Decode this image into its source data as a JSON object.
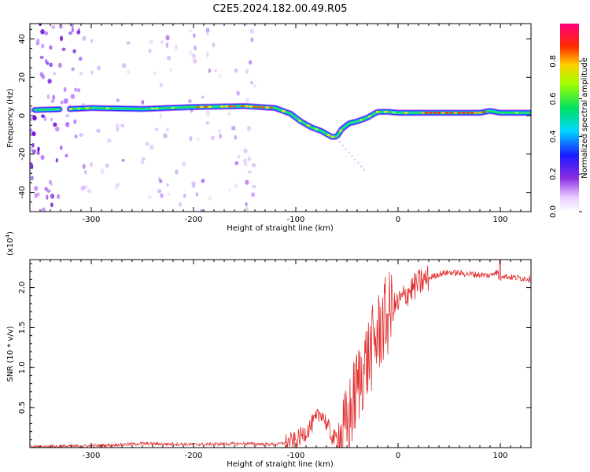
{
  "chart_data": [
    {
      "type": "heatmap",
      "title": "C2E5.2024.182.00.49.R05",
      "xlabel": "Height of straight line (km)",
      "ylabel": "Frequency (Hz)",
      "xlim": [
        -360,
        130
      ],
      "ylim": [
        -50,
        48
      ],
      "xticks": [
        -300,
        -200,
        -100,
        0,
        100
      ],
      "yticks": [
        -40,
        -20,
        0,
        20,
        40
      ],
      "grid": false,
      "colorbar": {
        "label": "Normalized spectral amplitude",
        "range": [
          0,
          1
        ],
        "ticks": [
          "0.0",
          "0.2",
          "0.4",
          "0.6",
          "0.8"
        ],
        "colormap": "white-purple-blue-cyan-green-yellow-red-magenta"
      },
      "ridge": {
        "description_units": "x in km, y in Hz",
        "x": [
          -355,
          -320,
          -300,
          -250,
          -200,
          -150,
          -120,
          -105,
          -95,
          -85,
          -75,
          -65,
          -60,
          -55,
          -48,
          -40,
          -30,
          -20,
          -10,
          0,
          20,
          50,
          80,
          90,
          100,
          130
        ],
        "y": [
          3,
          3.5,
          4,
          3.5,
          4.5,
          5,
          4,
          1,
          -3,
          -6,
          -8,
          -11,
          -11,
          -7,
          -4,
          -3,
          -1,
          2,
          2,
          1.5,
          1.5,
          1.5,
          1.5,
          2.5,
          1.5,
          1.5
        ]
      }
    },
    {
      "type": "line",
      "xlabel": "Height of straight line (km)",
      "ylabel": "SNR (10 * v/v)",
      "multiplier": "(x10",
      "multiplier_exp": "4",
      "xlim": [
        -360,
        130
      ],
      "ylim": [
        0,
        2.35
      ],
      "xticks": [
        -300,
        -200,
        -100,
        0,
        100
      ],
      "yticks": [
        "0.5",
        "1.0",
        "1.5",
        "2.0"
      ],
      "grid": false,
      "series": [
        {
          "color": "#e03030",
          "x": [
            -360,
            -300,
            -250,
            -200,
            -150,
            -120,
            -100,
            -90,
            -80,
            -75,
            -70,
            -65,
            -60,
            -55,
            -50,
            -45,
            -40,
            -35,
            -30,
            -25,
            -20,
            -15,
            -10,
            -5,
            0,
            10,
            20,
            30,
            40,
            50,
            60,
            70,
            80,
            90,
            95,
            100,
            105,
            110,
            120,
            130
          ],
          "y": [
            0.01,
            0.02,
            0.05,
            0.04,
            0.05,
            0.04,
            0.08,
            0.2,
            0.35,
            0.45,
            0.3,
            0.15,
            0.08,
            0.1,
            0.25,
            0.5,
            0.75,
            0.95,
            1.1,
            1.25,
            1.4,
            1.55,
            1.65,
            1.75,
            1.8,
            1.95,
            2.05,
            2.12,
            2.17,
            2.19,
            2.18,
            2.17,
            2.16,
            2.15,
            2.2,
            2.17,
            2.14,
            2.13,
            2.12,
            2.11
          ]
        }
      ]
    }
  ]
}
